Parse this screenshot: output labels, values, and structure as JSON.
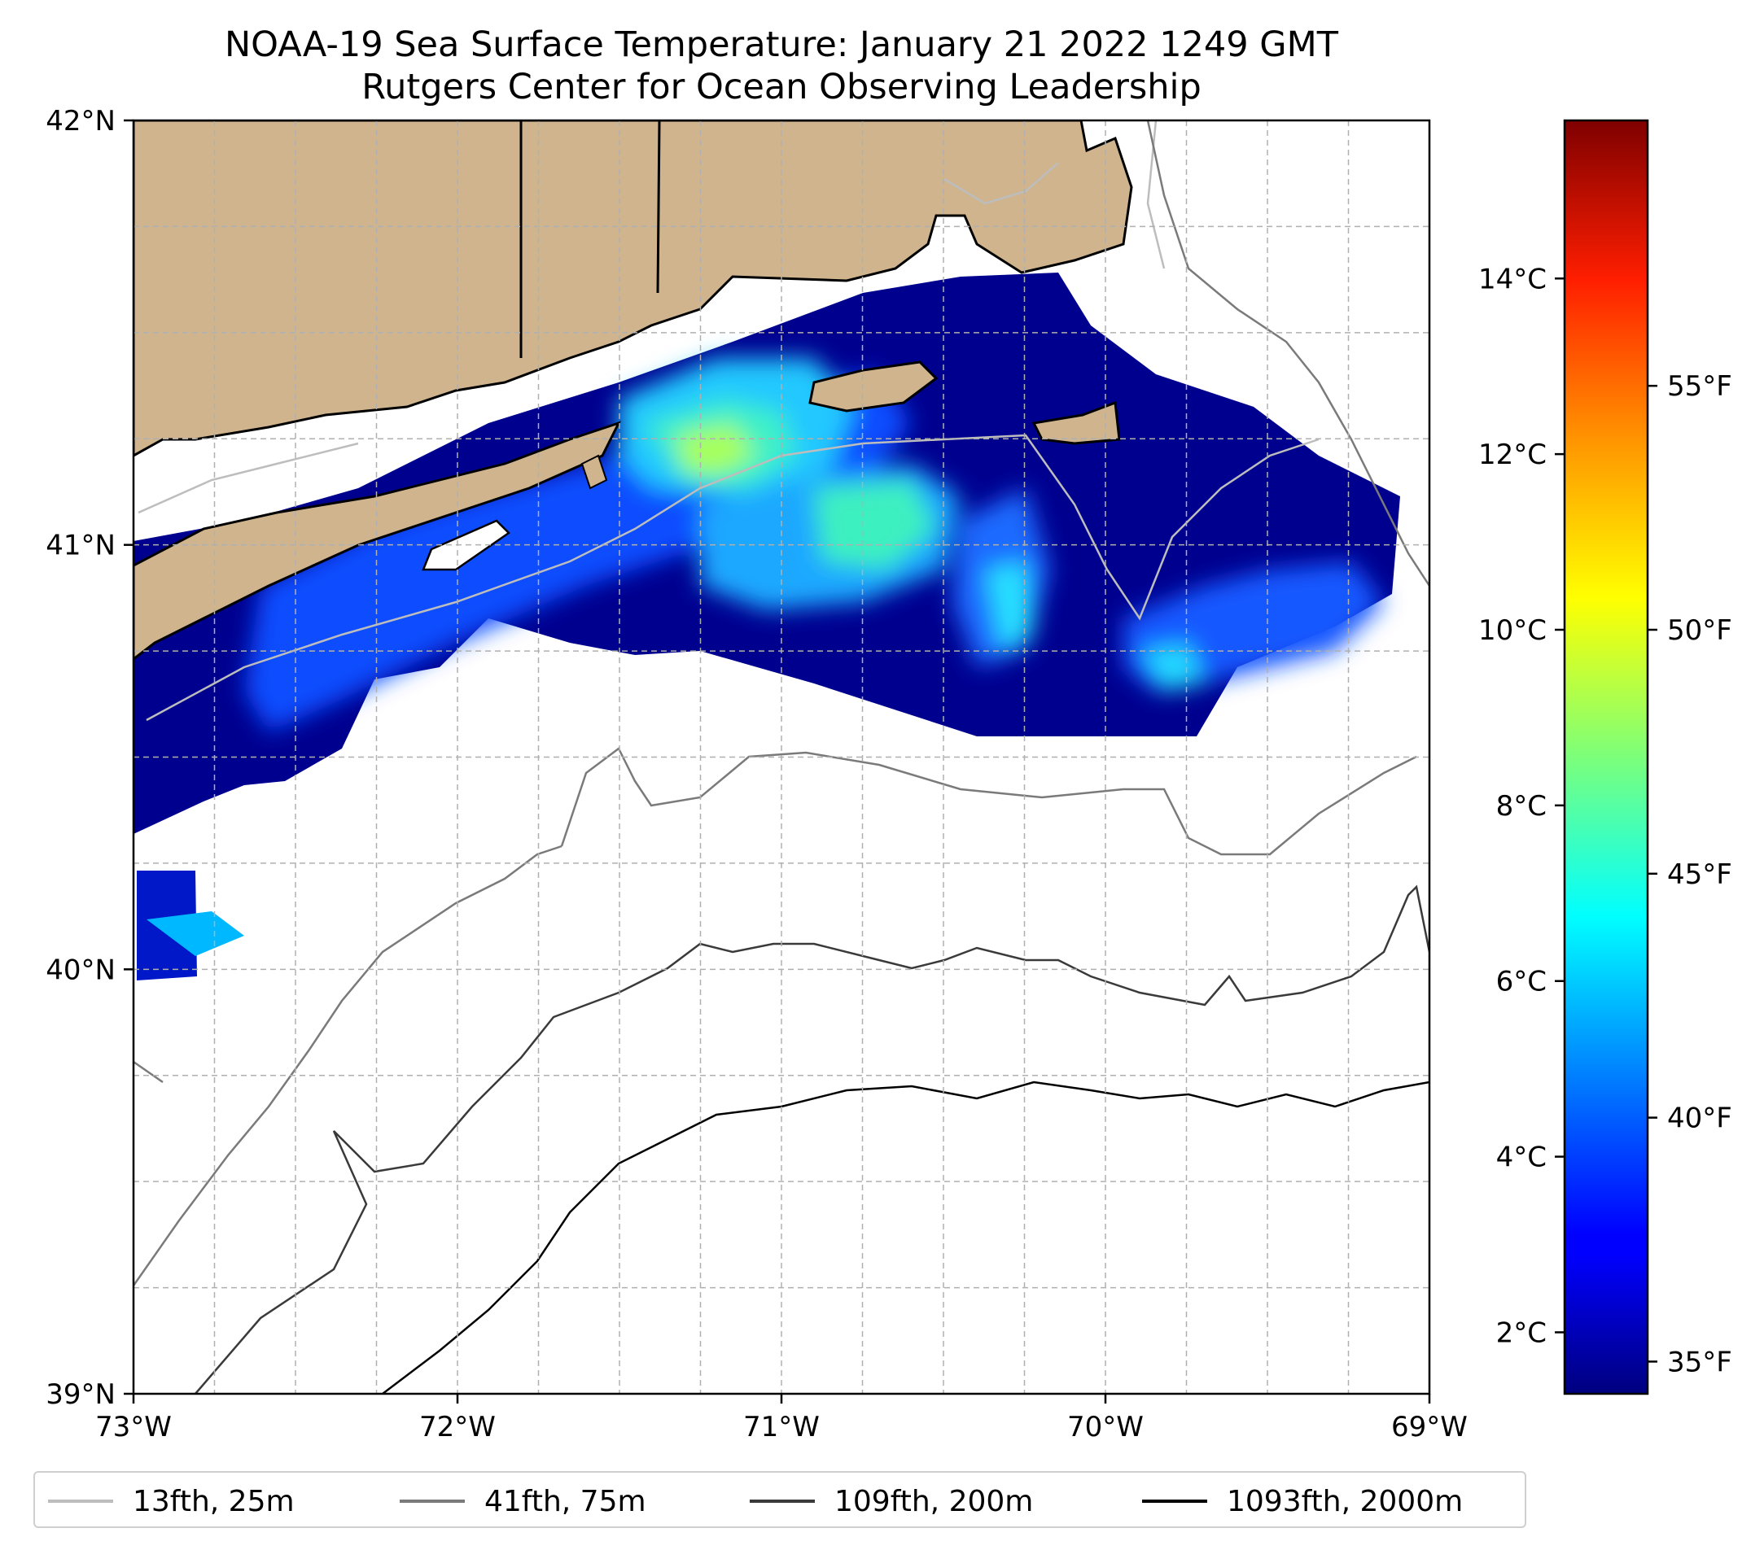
{
  "title": {
    "line1": "NOAA-19 Sea Surface Temperature: January 21 2022 1249 GMT",
    "line2": "Rutgers Center for Ocean Observing Leadership"
  },
  "map": {
    "lon_range": [
      -73,
      -69
    ],
    "lat_range": [
      39,
      42
    ],
    "lon_ticks": [
      "73°W",
      "72°W",
      "71°W",
      "70°W",
      "69°W"
    ],
    "lat_ticks": [
      "42°N",
      "41°N",
      "40°N",
      "39°N"
    ],
    "gridlines": true,
    "land_color": "#cfb48d",
    "missing_color": "#ffffff"
  },
  "colorbar": {
    "colormap": "jet",
    "celsius_range": [
      1.3,
      15.8
    ],
    "celsius_ticks": [
      "14°C",
      "12°C",
      "10°C",
      "8°C",
      "6°C",
      "4°C",
      "2°C"
    ],
    "fahrenheit_ticks": [
      "55°F",
      "50°F",
      "45°F",
      "40°F",
      "35°F"
    ]
  },
  "legend": {
    "items": [
      {
        "label": "13fth, 25m",
        "color": "#bdbdbd"
      },
      {
        "label": "41fth, 75m",
        "color": "#7a7a7a"
      },
      {
        "label": "109fth, 200m",
        "color": "#3a3a3a"
      },
      {
        "label": "1093fth, 2000m",
        "color": "#000000"
      }
    ]
  }
}
